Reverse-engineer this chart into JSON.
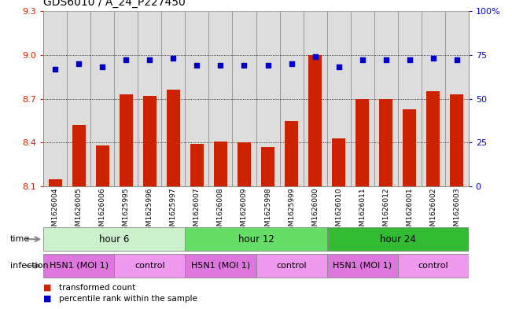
{
  "title": "GDS6010 / A_24_P227450",
  "samples": [
    "GSM1626004",
    "GSM1626005",
    "GSM1626006",
    "GSM1625995",
    "GSM1625996",
    "GSM1625997",
    "GSM1626007",
    "GSM1626008",
    "GSM1626009",
    "GSM1625998",
    "GSM1625999",
    "GSM1626000",
    "GSM1626010",
    "GSM1626011",
    "GSM1626012",
    "GSM1626001",
    "GSM1626002",
    "GSM1626003"
  ],
  "bar_values": [
    8.15,
    8.52,
    8.38,
    8.73,
    8.72,
    8.76,
    8.39,
    8.41,
    8.4,
    8.37,
    8.55,
    9.0,
    8.43,
    8.7,
    8.7,
    8.63,
    8.75,
    8.73
  ],
  "dot_values": [
    67,
    70,
    68,
    72,
    72,
    73,
    69,
    69,
    69,
    69,
    70,
    74,
    68,
    72,
    72,
    72,
    73,
    72
  ],
  "ylim": [
    8.1,
    9.3
  ],
  "y2lim": [
    0,
    100
  ],
  "yticks": [
    8.1,
    8.4,
    8.7,
    9.0,
    9.3
  ],
  "y2ticks": [
    0,
    25,
    50,
    75,
    100
  ],
  "y2ticklabels": [
    "0",
    "25",
    "50",
    "75",
    "100%"
  ],
  "bar_color": "#cc2200",
  "dot_color": "#0000cc",
  "bar_width": 0.55,
  "time_group_spans": [
    {
      "label": "hour 6",
      "start": 0,
      "end": 6,
      "color": "#ccf0cc"
    },
    {
      "label": "hour 12",
      "start": 6,
      "end": 12,
      "color": "#66dd66"
    },
    {
      "label": "hour 24",
      "start": 12,
      "end": 18,
      "color": "#33bb33"
    }
  ],
  "inf_group_spans": [
    {
      "label": "H5N1 (MOI 1)",
      "start": 0,
      "end": 3,
      "color": "#dd77dd"
    },
    {
      "label": "control",
      "start": 3,
      "end": 6,
      "color": "#ee99ee"
    },
    {
      "label": "H5N1 (MOI 1)",
      "start": 6,
      "end": 9,
      "color": "#dd77dd"
    },
    {
      "label": "control",
      "start": 9,
      "end": 12,
      "color": "#ee99ee"
    },
    {
      "label": "H5N1 (MOI 1)",
      "start": 12,
      "end": 15,
      "color": "#dd77dd"
    },
    {
      "label": "control",
      "start": 15,
      "end": 18,
      "color": "#ee99ee"
    }
  ],
  "legend_bar_label": "transformed count",
  "legend_dot_label": "percentile rank within the sample",
  "title_fontsize": 10,
  "tick_fontsize": 8,
  "sample_fontsize": 6.5,
  "annot_fontsize": 8.5,
  "label_fontsize": 8
}
